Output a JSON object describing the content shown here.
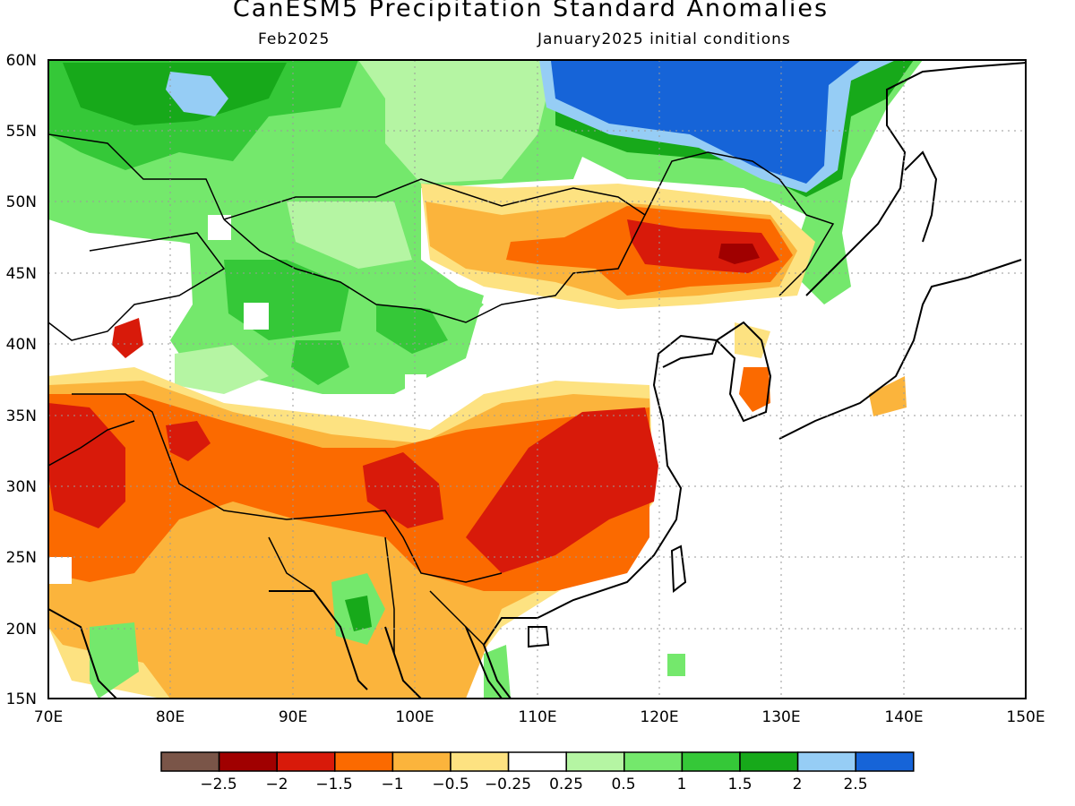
{
  "header": {
    "title": "CanESM5 Precipitation Standard Anomalies",
    "subtitle_left": "Feb2025",
    "subtitle_right": "January2025 initial conditions"
  },
  "axes": {
    "lat_labels": [
      "60N",
      "55N",
      "50N",
      "45N",
      "40N",
      "35N",
      "30N",
      "25N",
      "20N",
      "15N"
    ],
    "lon_labels": [
      "70E",
      "80E",
      "90E",
      "100E",
      "110E",
      "120E",
      "130E",
      "140E",
      "150E"
    ]
  },
  "legend": {
    "colors": [
      "#7a5548",
      "#a00000",
      "#d81a0a",
      "#fb6a00",
      "#fbb43c",
      "#fde281",
      "#ffffff",
      "#b5f5a3",
      "#74e86c",
      "#35c838",
      "#17a91a",
      "#96cdf5",
      "#1664d8"
    ],
    "labels": [
      "−2.5",
      "−2",
      "−1.5",
      "−1",
      "−0.5",
      "−0.25",
      "0.25",
      "0.5",
      "1",
      "1.5",
      "2",
      "2.5"
    ]
  },
  "map": {
    "region": "East Asia",
    "projection": "lat-lon",
    "lon_range": [
      70,
      150
    ],
    "lat_range": [
      15,
      60
    ],
    "variable": "Precipitation standard anomaly",
    "gridlines": "dotted"
  }
}
